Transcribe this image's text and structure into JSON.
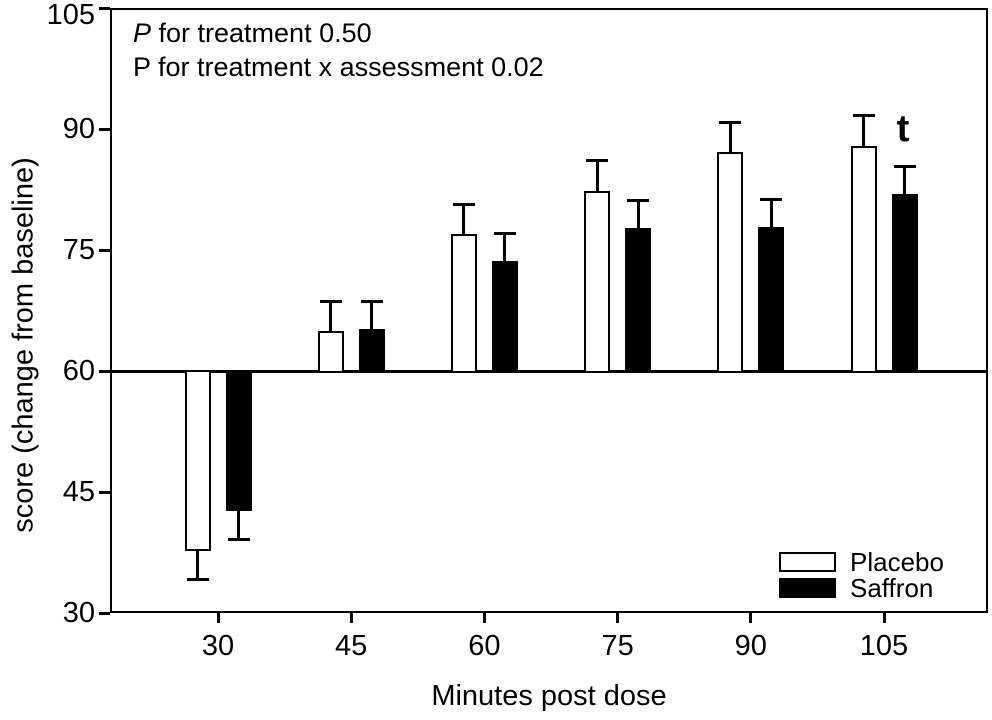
{
  "annotation": {
    "line1_p": "P",
    "line1_rest": " for treatment 0.50",
    "line2": "P for treatment x assessment 0.02"
  },
  "axes": {
    "y_title": "score (change from baseline)",
    "x_title": "Minutes post dose",
    "y_tick_labels": [
      "105",
      "90",
      "75",
      "60",
      "45",
      "30"
    ],
    "x_tick_labels": [
      "30",
      "45",
      "60",
      "75",
      "90",
      "105"
    ]
  },
  "legend": [
    {
      "label": "Placebo",
      "fill": "#ffffff"
    },
    {
      "label": "Saffron",
      "fill": "#000000"
    }
  ],
  "sig_marker": "t",
  "chart_data": {
    "type": "bar",
    "title": "",
    "xlabel": "Minutes post dose",
    "ylabel": "score (change from baseline)",
    "categories": [
      30,
      45,
      60,
      75,
      90,
      105
    ],
    "ylim": [
      30,
      105
    ],
    "y_ticks": [
      105,
      90,
      75,
      60,
      45,
      30
    ],
    "baseline": 60,
    "grid": false,
    "legend_position": "lower right",
    "series": [
      {
        "name": "Placebo",
        "fill": "#ffffff",
        "values": [
          37.7,
          65.0,
          77.0,
          82.3,
          87.2,
          87.9
        ],
        "errors_upper": [
          0,
          3.7,
          3.7,
          3.8,
          3.7,
          3.8
        ],
        "errors_lower": [
          3.6,
          0,
          0,
          0,
          0,
          0
        ]
      },
      {
        "name": "Saffron",
        "fill": "#000000",
        "values": [
          42.6,
          65.2,
          73.6,
          77.7,
          77.9,
          82.0
        ],
        "errors_upper": [
          0,
          3.5,
          3.5,
          3.5,
          3.4,
          3.4
        ],
        "errors_lower": [
          3.5,
          0,
          0,
          0,
          0,
          0
        ]
      }
    ],
    "annotations": [
      "P for treatment 0.50",
      "P for treatment x assessment 0.02"
    ],
    "significance": {
      "label": "t",
      "category": 105,
      "series": "Saffron",
      "position": "above bar"
    }
  }
}
